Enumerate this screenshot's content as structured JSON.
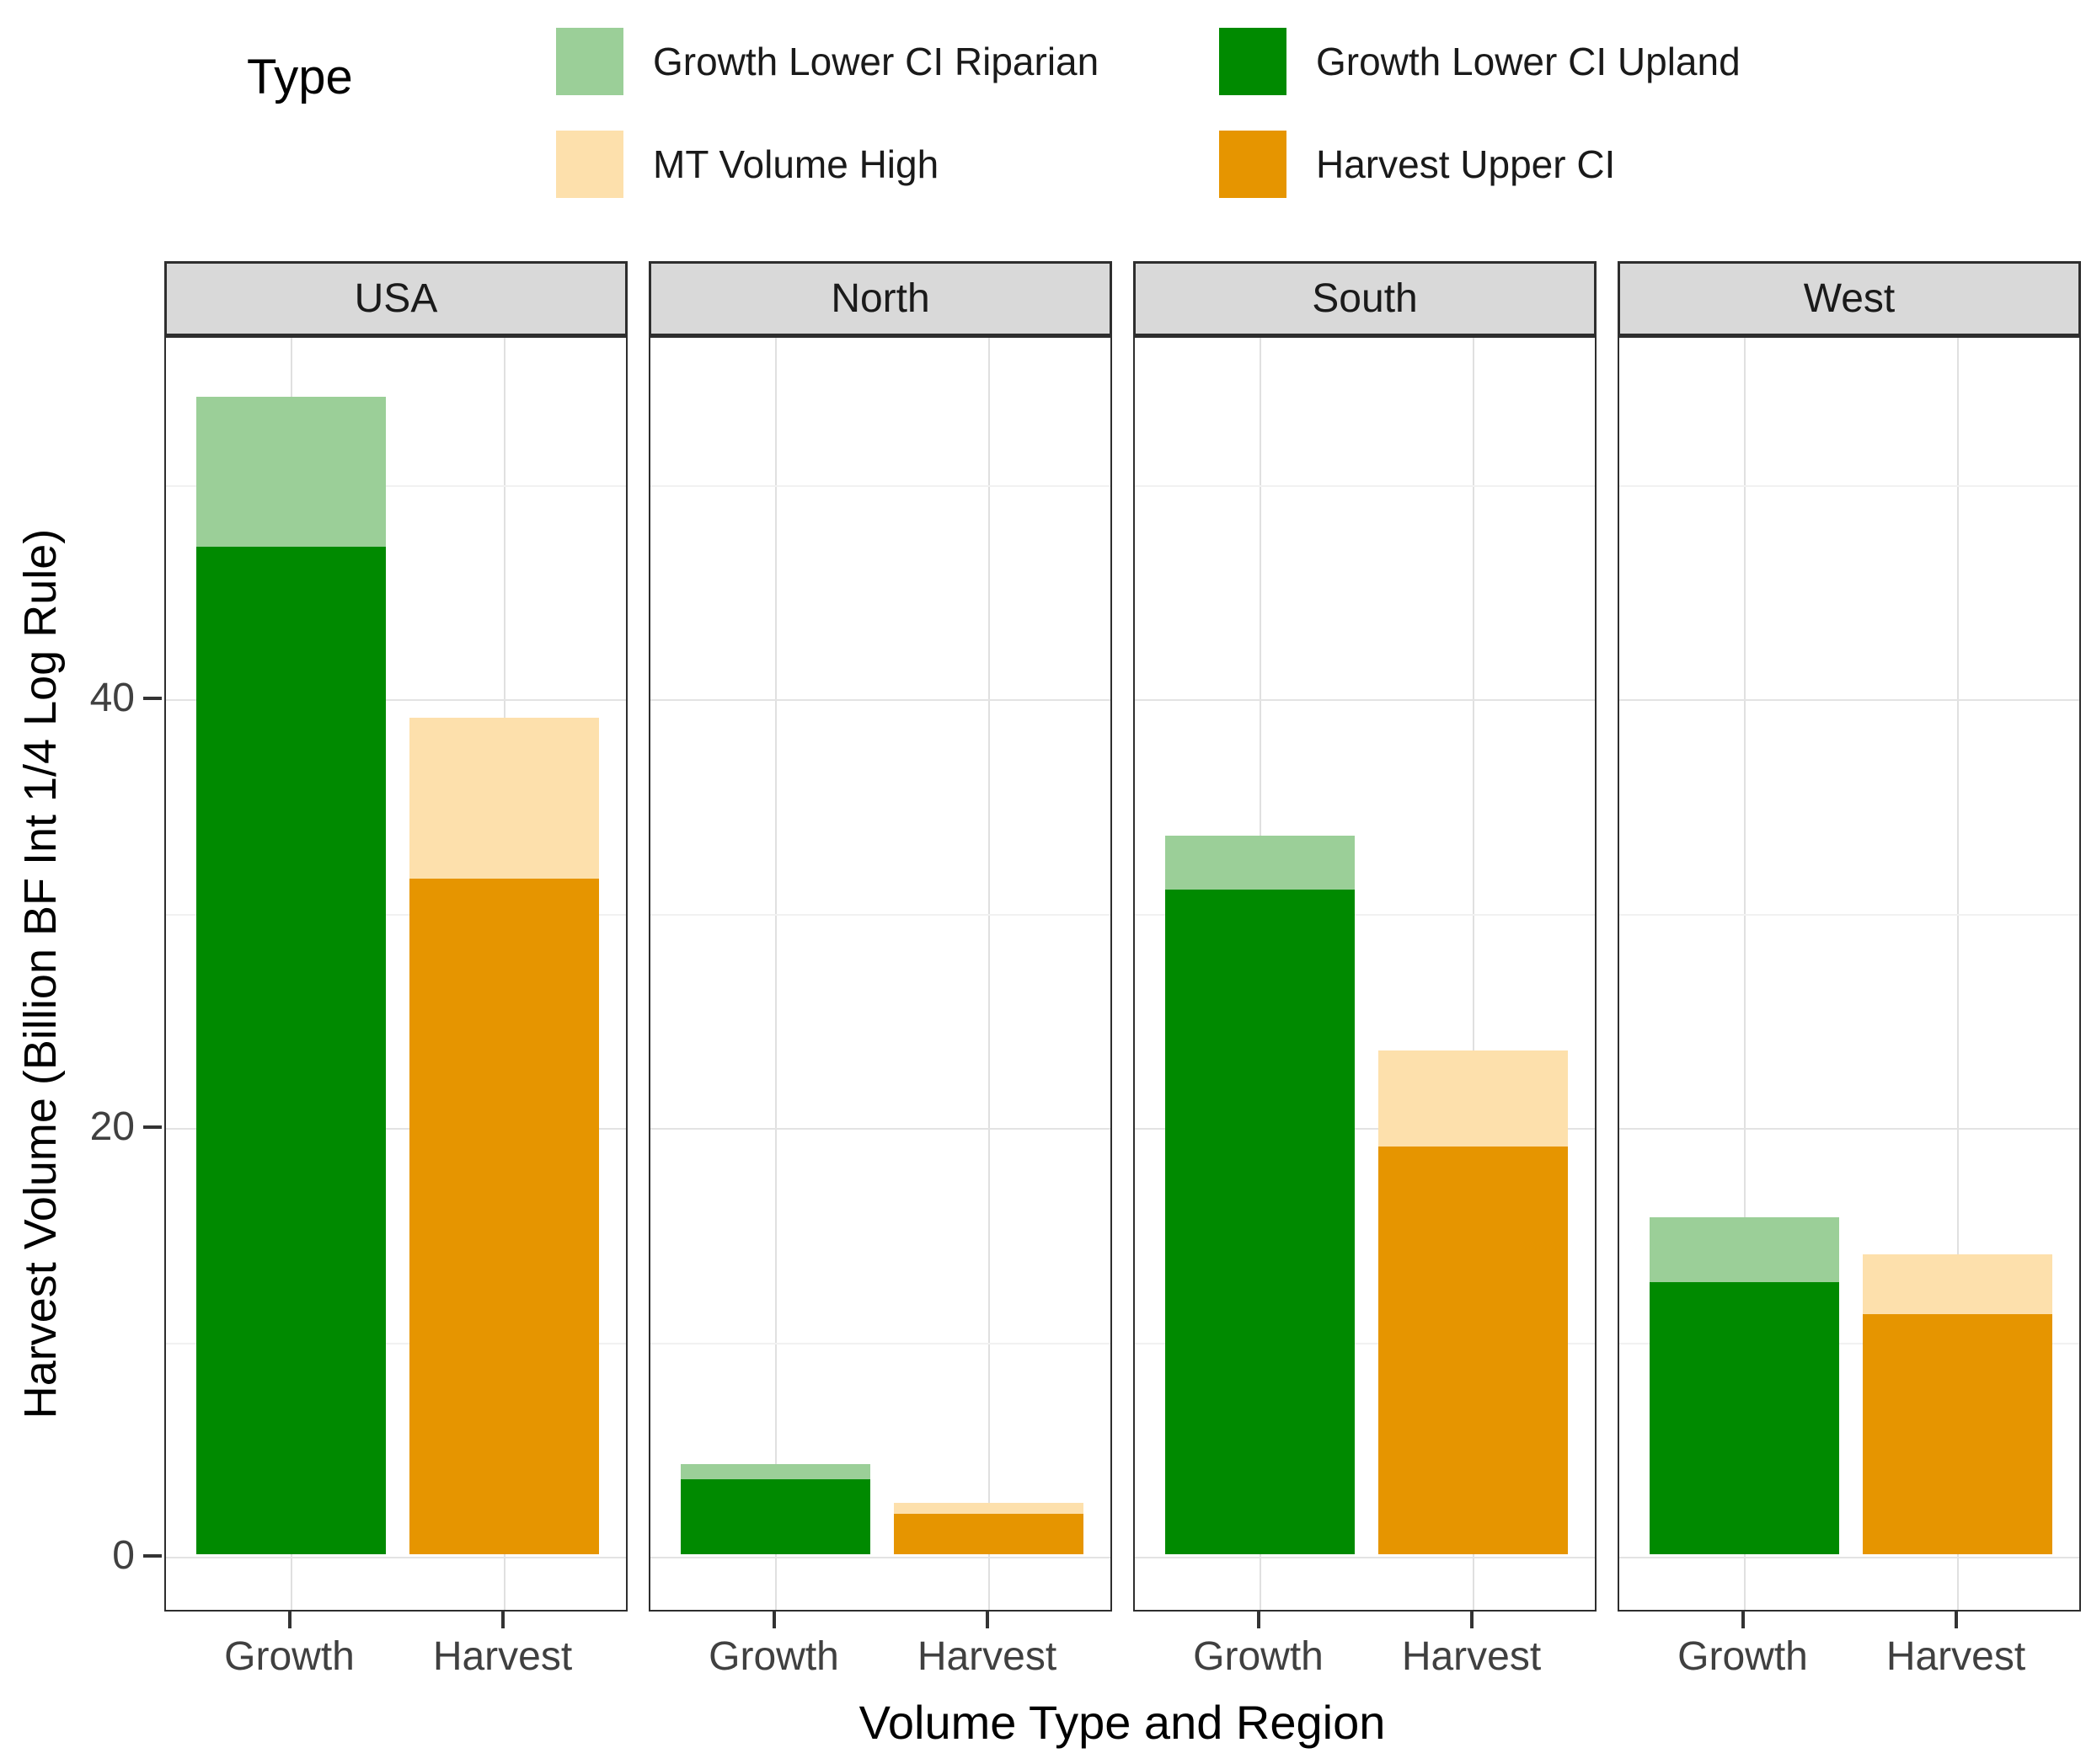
{
  "chart_data": {
    "type": "bar",
    "variant": "faceted stacked bars (ggplot-style)",
    "legend_title": "Type",
    "legend": [
      {
        "label": "Growth Lower CI Riparian",
        "series": "riparian",
        "color": "#9BCF98"
      },
      {
        "label": "Growth Lower CI Upland",
        "series": "upland",
        "color": "#008A00"
      },
      {
        "label": "MT Volume High",
        "series": "mt_high",
        "color": "#FDE0AC"
      },
      {
        "label": "Harvest Upper CI",
        "series": "harvest_upper",
        "color": "#E69500"
      }
    ],
    "xlabel": "Volume Type and Region",
    "ylabel": "Harvest Volume (Billion BF Int 1/4 Log Rule)",
    "categories": [
      "Growth",
      "Harvest"
    ],
    "y_ticks": [
      {
        "label": "0",
        "value": 0
      },
      {
        "label": "20",
        "value": 20
      },
      {
        "label": "40",
        "value": 40
      }
    ],
    "y_minor_gridlines": [
      10,
      30,
      50
    ],
    "ylim": [
      0,
      57
    ],
    "grid": true,
    "legend_position": "top",
    "facets": [
      {
        "name": "USA",
        "growth": {
          "upland": 47.0,
          "riparian_total": 54.0
        },
        "harvest": {
          "upper_ci": 31.5,
          "mt_total": 39.0
        }
      },
      {
        "name": "North",
        "growth": {
          "upland": 3.5,
          "riparian_total": 4.2
        },
        "harvest": {
          "upper_ci": 1.9,
          "mt_total": 2.4
        }
      },
      {
        "name": "South",
        "growth": {
          "upland": 31.0,
          "riparian_total": 33.5
        },
        "harvest": {
          "upper_ci": 19.0,
          "mt_total": 23.5
        }
      },
      {
        "name": "West",
        "growth": {
          "upland": 12.7,
          "riparian_total": 15.7
        },
        "harvest": {
          "upper_ci": 11.2,
          "mt_total": 14.0
        }
      }
    ],
    "colors": {
      "riparian": "#9BCF98",
      "upland": "#008A00",
      "mt_high": "#FDE0AC",
      "harvest_upper": "#E69500",
      "strip_bg": "#D9D9D9",
      "panel_border": "#2E2E2E",
      "axis_text": "#404040"
    }
  }
}
